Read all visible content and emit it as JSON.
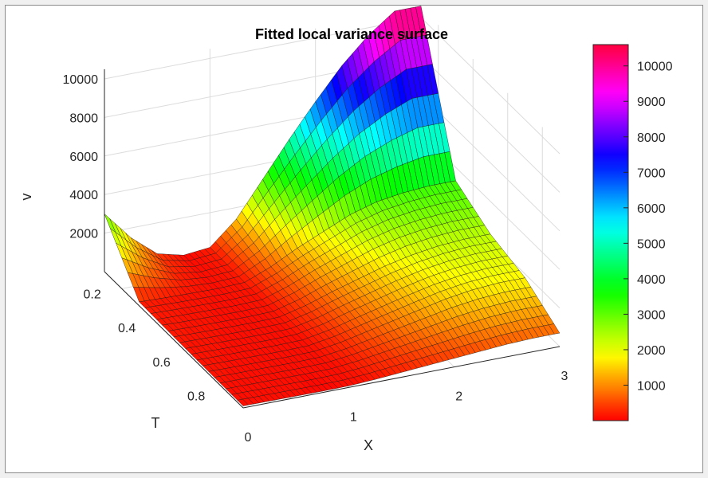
{
  "chart_data": {
    "type": "surface",
    "title": "Fitted local variance surface",
    "xlabel": "X",
    "ylabel": "T",
    "zlabel": "v",
    "x_ticks": [
      "0",
      "1",
      "2",
      "3"
    ],
    "t_ticks": [
      "0.2",
      "0.4",
      "0.6",
      "0.8"
    ],
    "z_ticks": [
      "2000",
      "4000",
      "6000",
      "8000",
      "10000"
    ],
    "xlim": [
      0,
      3
    ],
    "tlim": [
      0.1,
      0.9
    ],
    "zlim": [
      0,
      10500
    ],
    "grid": true,
    "colormap": "hsv",
    "colorbar": {
      "ticks": [
        "1000",
        "2000",
        "3000",
        "4000",
        "5000",
        "6000",
        "7000",
        "8000",
        "9000",
        "10000"
      ],
      "range": [
        0,
        10600
      ],
      "placement": "right"
    },
    "x_values": [
      0,
      0.25,
      0.5,
      0.75,
      1.0,
      1.25,
      1.5,
      1.75,
      2.0,
      2.25,
      2.5,
      2.75,
      3.0
    ],
    "t_values": [
      0.1,
      0.3,
      0.5,
      0.7,
      0.9
    ],
    "z_values": [
      [
        3000,
        1500,
        400,
        60,
        200,
        1400,
        3200,
        5000,
        6700,
        8300,
        9600,
        10600,
        10600
      ],
      [
        200,
        150,
        120,
        100,
        150,
        700,
        1400,
        2000,
        2600,
        3000,
        3200,
        3300,
        3300
      ],
      [
        150,
        120,
        100,
        90,
        120,
        450,
        900,
        1300,
        1700,
        2000,
        2200,
        2300,
        2300
      ],
      [
        120,
        100,
        90,
        80,
        100,
        300,
        600,
        900,
        1200,
        1500,
        1700,
        1800,
        1800
      ],
      [
        100,
        90,
        80,
        70,
        80,
        150,
        250,
        350,
        450,
        550,
        650,
        700,
        700
      ]
    ]
  }
}
